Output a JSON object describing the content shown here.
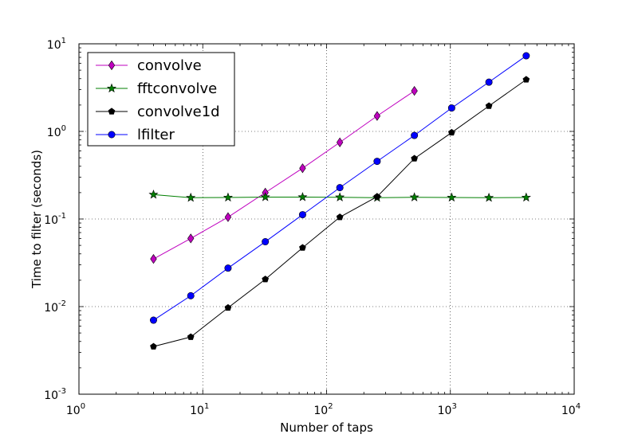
{
  "chart_data": {
    "type": "line",
    "title": "",
    "xlabel": "Number of taps",
    "ylabel": "Time to filter (seconds)",
    "xscale": "log",
    "yscale": "log",
    "xlim": [
      1,
      10000
    ],
    "ylim": [
      0.001,
      10
    ],
    "x_ticks": [
      {
        "value": 1,
        "base": "10",
        "exp": "0"
      },
      {
        "value": 10,
        "base": "10",
        "exp": "1"
      },
      {
        "value": 100,
        "base": "10",
        "exp": "2"
      },
      {
        "value": 1000,
        "base": "10",
        "exp": "3"
      },
      {
        "value": 10000,
        "base": "10",
        "exp": "4"
      }
    ],
    "y_ticks": [
      {
        "value": 0.001,
        "base": "10",
        "exp": "-3"
      },
      {
        "value": 0.01,
        "base": "10",
        "exp": "-2"
      },
      {
        "value": 0.1,
        "base": "10",
        "exp": "-1"
      },
      {
        "value": 1,
        "base": "10",
        "exp": "0"
      },
      {
        "value": 10,
        "base": "10",
        "exp": "1"
      }
    ],
    "grid": true,
    "legend_position": "top-left",
    "series": [
      {
        "name": "convolve",
        "color": "#bf00bf",
        "marker": "diamond",
        "x": [
          4,
          8,
          16,
          32,
          64,
          128,
          256,
          512
        ],
        "y": [
          0.035,
          0.06,
          0.105,
          0.2,
          0.38,
          0.75,
          1.5,
          2.9
        ]
      },
      {
        "name": "fftconvolve",
        "color": "#007f00",
        "marker": "star",
        "x": [
          4,
          8,
          16,
          32,
          64,
          128,
          256,
          512,
          1024,
          2048,
          4096
        ],
        "y": [
          0.19,
          0.175,
          0.176,
          0.178,
          0.178,
          0.177,
          0.175,
          0.177,
          0.176,
          0.175,
          0.176
        ]
      },
      {
        "name": "convolve1d",
        "color": "#000000",
        "marker": "pentagon",
        "x": [
          4,
          8,
          16,
          32,
          64,
          128,
          256,
          512,
          1024,
          2048,
          4096
        ],
        "y": [
          0.0035,
          0.0045,
          0.0097,
          0.0205,
          0.047,
          0.105,
          0.18,
          0.49,
          0.97,
          1.95,
          3.9
        ]
      },
      {
        "name": "lfilter",
        "color": "#0000ff",
        "marker": "circle",
        "x": [
          4,
          8,
          16,
          32,
          64,
          128,
          256,
          512,
          1024,
          2048,
          4096
        ],
        "y": [
          0.007,
          0.0133,
          0.0275,
          0.055,
          0.112,
          0.228,
          0.455,
          0.9,
          1.85,
          3.65,
          7.3
        ]
      }
    ]
  }
}
